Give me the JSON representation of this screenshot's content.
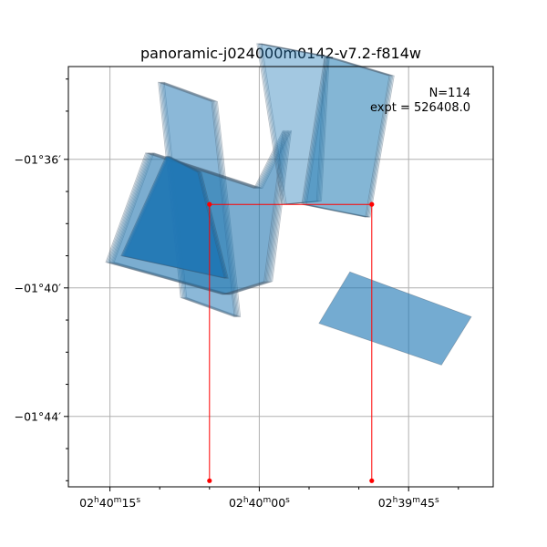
{
  "chart_data": {
    "type": "sky-footprint",
    "title": "panoramic-j024000m0142-v7.2-f814w",
    "annotation_lines": [
      "N=114",
      "expt = 526408.0"
    ],
    "x_ticks": [
      {
        "ra_sec": 15,
        "h": "02",
        "m": "40",
        "s": "15"
      },
      {
        "ra_sec": 0,
        "h": "02",
        "m": "40",
        "s": "00"
      },
      {
        "ra_sec": -15,
        "h": "02",
        "m": "39",
        "s": "45"
      }
    ],
    "y_ticks": [
      {
        "dec_arcmin": -96,
        "label": "−01°36′"
      },
      {
        "dec_arcmin": -100,
        "label": "−01°40′"
      },
      {
        "dec_arcmin": -104,
        "label": "−01°44′"
      }
    ],
    "xlim_ra_sec": [
      19,
      -24
    ],
    "ylim_dec_arcmin": [
      -106.2,
      -93.0
    ],
    "grid": true,
    "colors": {
      "fill": "#1f77b4",
      "edge": "#3b4d5e",
      "outline": "#ff0000",
      "grid": "#b0b0b0"
    },
    "footprints": [
      {
        "group": "upper-left-tall",
        "alpha": 0.3,
        "count": 6,
        "corners": [
          [
            9.85,
            -93.6
          ],
          [
            4.5,
            -94.2
          ],
          [
            2.2,
            -100.9
          ],
          [
            7.6,
            -100.3
          ]
        ]
      },
      {
        "group": "left-wide",
        "alpha": 0.36,
        "count": 8,
        "corners": [
          [
            11.0,
            -95.8
          ],
          [
            0.1,
            -96.9
          ],
          [
            -2.8,
            -95.1
          ],
          [
            -0.9,
            -99.8
          ],
          [
            3.3,
            -100.2
          ],
          [
            15.0,
            -99.2
          ]
        ]
      },
      {
        "group": "left-dark",
        "alpha": 0.85,
        "count": 4,
        "corners": [
          [
            9.2,
            -95.9
          ],
          [
            6.0,
            -96.4
          ],
          [
            3.3,
            -99.7
          ],
          [
            13.7,
            -99.0
          ]
        ]
      },
      {
        "group": "top-right-light",
        "alpha": 0.22,
        "count": 5,
        "corners": [
          [
            0.0,
            -92.4
          ],
          [
            -6.8,
            -92.8
          ],
          [
            -6.0,
            -97.3
          ],
          [
            -2.5,
            -97.4
          ]
        ]
      },
      {
        "group": "top-right-right",
        "alpha": 0.32,
        "count": 5,
        "corners": [
          [
            -6.8,
            -92.8
          ],
          [
            -13.3,
            -93.4
          ],
          [
            -10.9,
            -97.8
          ],
          [
            -4.5,
            -97.4
          ]
        ]
      },
      {
        "group": "lower-right",
        "alpha": 0.62,
        "count": 1,
        "corners": [
          [
            -9.1,
            -99.5
          ],
          [
            -21.3,
            -100.9
          ],
          [
            -18.3,
            -102.4
          ],
          [
            -6.0,
            -101.1
          ]
        ]
      }
    ],
    "outline_polyline": [
      [
        5.0,
        -106.0
      ],
      [
        5.0,
        -97.4
      ],
      [
        -11.3,
        -97.4
      ],
      [
        -11.3,
        -106.0
      ]
    ]
  }
}
